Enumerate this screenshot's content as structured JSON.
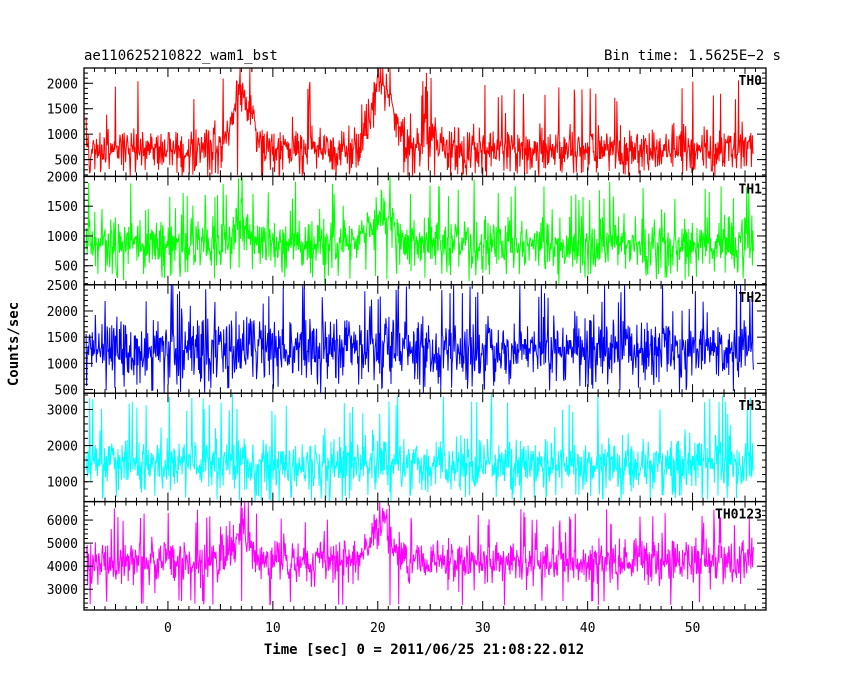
{
  "chart_data": {
    "type": "line",
    "title_left": "ae110625210822_wam1_bst",
    "title_right": "Bin time: 1.5625E−2 s",
    "xlabel": "Time [sec] 0 = 2011/06/25 21:08:22.012",
    "ylabel": "Counts/sec",
    "xlim": [
      -8,
      57
    ],
    "x_ticks": [
      0,
      10,
      20,
      30,
      40,
      50
    ],
    "grid": false,
    "panels": [
      {
        "label": "TH0",
        "color": "#ff0000",
        "ylim": [
          170,
          2300
        ],
        "y_ticks": [
          500,
          1000,
          1500,
          2000
        ],
        "data_range": [
          -7.8,
          55.8
        ],
        "baseline": 700,
        "noise": 230,
        "spike": 1950,
        "floor": 180,
        "bursts": [
          {
            "center": 7.0,
            "width": 0.9,
            "amp": 1050
          },
          {
            "center": 20.4,
            "width": 1.0,
            "amp": 1250
          },
          {
            "center": 25.0,
            "width": 0.7,
            "amp": 220
          }
        ]
      },
      {
        "label": "TH1",
        "color": "#00ff00",
        "ylim": [
          180,
          2000
        ],
        "y_ticks": [
          500,
          1000,
          1500,
          2000
        ],
        "data_range": [
          -7.8,
          55.8
        ],
        "baseline": 850,
        "noise": 230,
        "spike": 1850,
        "floor": 250,
        "bursts": [
          {
            "center": 7.0,
            "width": 0.7,
            "amp": 300
          },
          {
            "center": 20.3,
            "width": 1.1,
            "amp": 450
          }
        ]
      },
      {
        "label": "TH2",
        "color": "#0000ff",
        "ylim": [
          430,
          2500
        ],
        "y_ticks": [
          500,
          1000,
          1500,
          2000,
          2500
        ],
        "data_range": [
          -7.8,
          55.8
        ],
        "baseline": 1250,
        "noise": 300,
        "spike": 2480,
        "floor": 460,
        "bursts": []
      },
      {
        "label": "TH3",
        "color": "#00ffff",
        "ylim": [
          450,
          3450
        ],
        "y_ticks": [
          1000,
          2000,
          3000
        ],
        "data_range": [
          -7.8,
          55.8
        ],
        "baseline": 1500,
        "noise": 360,
        "spike": 3300,
        "floor": 480,
        "bursts": []
      },
      {
        "label": "TH0123",
        "color": "#ff00ff",
        "ylim": [
          2100,
          6800
        ],
        "y_ticks": [
          3000,
          4000,
          5000,
          6000
        ],
        "data_range": [
          -7.8,
          55.8
        ],
        "baseline": 4200,
        "noise": 480,
        "spike": 6300,
        "floor": 2300,
        "bursts": [
          {
            "center": 7.0,
            "width": 0.8,
            "amp": 1200
          },
          {
            "center": 20.4,
            "width": 1.0,
            "amp": 1600
          }
        ]
      }
    ]
  }
}
